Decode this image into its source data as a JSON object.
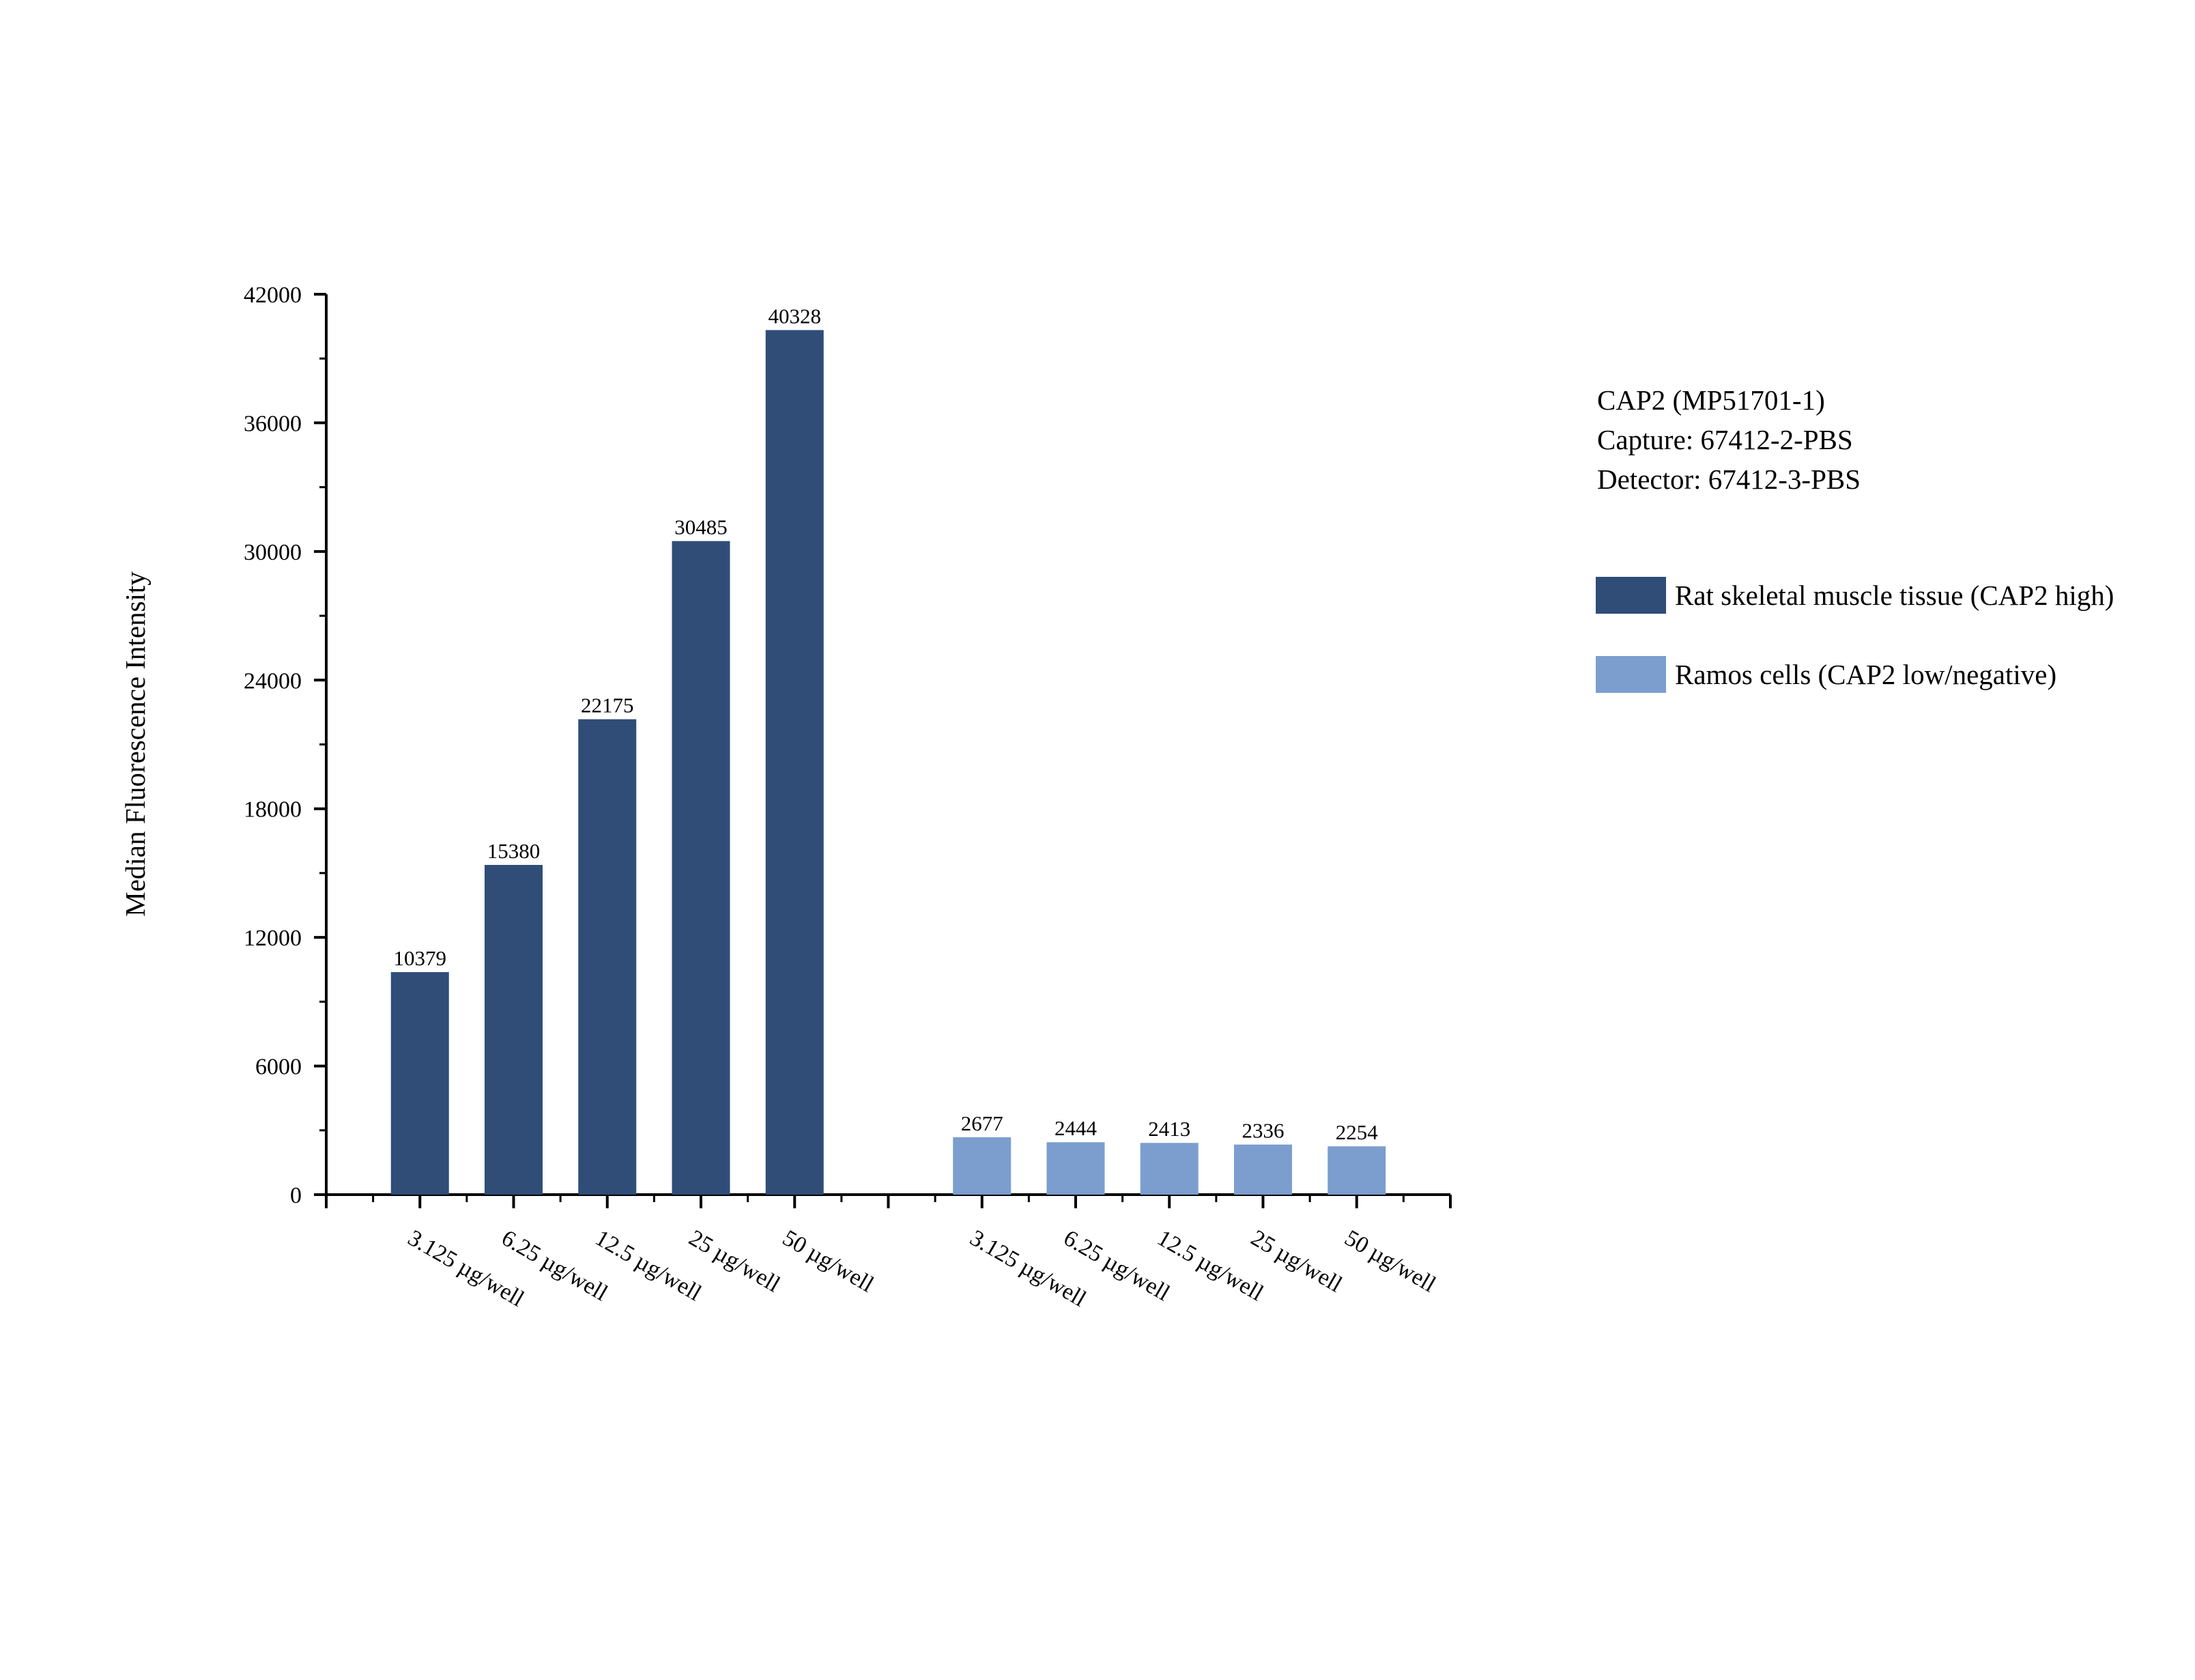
{
  "chart_data": {
    "type": "bar",
    "y_label": "Median Fluorescence Intensity",
    "annotations": [
      "CAP2 (MP51701-1)",
      "Capture: 67412-2-PBS",
      "Detector: 67412-3-PBS"
    ],
    "categories": [
      "3.125 µg/well",
      "6.25 µg/well",
      "12.5 µg/well",
      "25 µg/well",
      "50 µg/well",
      null,
      "3.125 µg/well",
      "6.25 µg/well",
      "12.5 µg/well",
      "25 µg/well",
      "50 µg/well"
    ],
    "series": [
      {
        "name": "Rat skeletal muscle tissue (CAP2 high)",
        "color": "#2f4d77",
        "values": [
          10379,
          15380,
          22175,
          30485,
          40328,
          null,
          null,
          null,
          null,
          null,
          null
        ]
      },
      {
        "name": "Ramos cells (CAP2 low/negative)",
        "color": "#7b9ecf",
        "values": [
          null,
          null,
          null,
          null,
          null,
          null,
          2677,
          2444,
          2413,
          2336,
          2254
        ]
      }
    ],
    "ylim": [
      0,
      42000
    ],
    "yticks": [
      0,
      6000,
      12000,
      18000,
      24000,
      30000,
      36000,
      42000
    ],
    "grid": false,
    "legend": "right"
  }
}
